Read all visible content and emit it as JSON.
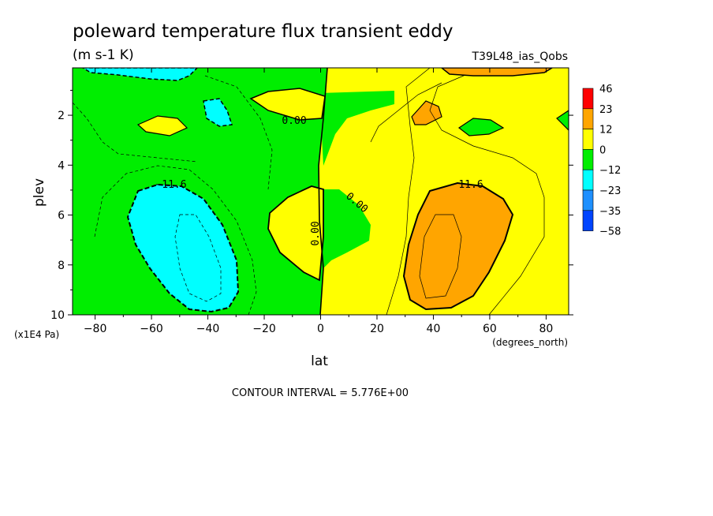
{
  "chart_data": {
    "type": "heatmap",
    "title": "poleward temperature flux transient eddy",
    "subtitle": "(m s-1 K)",
    "experiment": "T39L48_ias_Qobs",
    "xlabel": "lat",
    "x_units": "(degrees_north)",
    "ylabel": "plev",
    "y_units": "(x1E4 Pa)",
    "xlim": [
      -88,
      88
    ],
    "ylim": [
      0.1,
      10
    ],
    "y_reversed": true,
    "x_ticks": [
      -80,
      -60,
      -40,
      -20,
      0,
      20,
      40,
      60,
      80
    ],
    "x_tick_labels": [
      "−80",
      "−60",
      "−40",
      "−20",
      "0",
      "20",
      "40",
      "60",
      "80"
    ],
    "y_ticks": [
      2,
      4,
      6,
      8,
      10
    ],
    "y_tick_labels": [
      "2",
      "4",
      "6",
      "8",
      "10"
    ],
    "contour_interval_text": "CONTOUR INTERVAL = 5.776E+00",
    "contour_labels": [
      "11.6",
      "0.00",
      "0.00",
      "0.00",
      "−11.6"
    ],
    "colorbar": {
      "levels": [
        "46",
        "23",
        "12",
        "0",
        "−12",
        "−23",
        "−35",
        "−58"
      ],
      "colors": [
        "#ff0000",
        "#ffa500",
        "#ffff00",
        "#00ee00",
        "#00ffff",
        "#1e90ff",
        "#0044ff"
      ]
    },
    "regions": [
      {
        "name": "southern-negative-core",
        "value_range": [
          -23,
          -12
        ],
        "lat_range": [
          -66,
          -30
        ],
        "plev_range": [
          4.8,
          10
        ],
        "peak_lat": -46,
        "peak_plev": 8
      },
      {
        "name": "northern-positive-core",
        "value_range": [
          12,
          23
        ],
        "lat_range": [
          30,
          66
        ],
        "plev_range": [
          4.8,
          10
        ],
        "peak_lat": 44,
        "peak_plev": 7.5
      },
      {
        "name": "upper-southern-negative",
        "value_range": [
          -23,
          -12
        ],
        "lat_range": [
          -85,
          -50
        ],
        "plev_range": [
          0.1,
          0.4
        ]
      },
      {
        "name": "upper-northern-positive",
        "value_range": [
          12,
          46
        ],
        "lat_range": [
          45,
          80
        ],
        "plev_range": [
          0.1,
          0.3
        ]
      }
    ]
  }
}
